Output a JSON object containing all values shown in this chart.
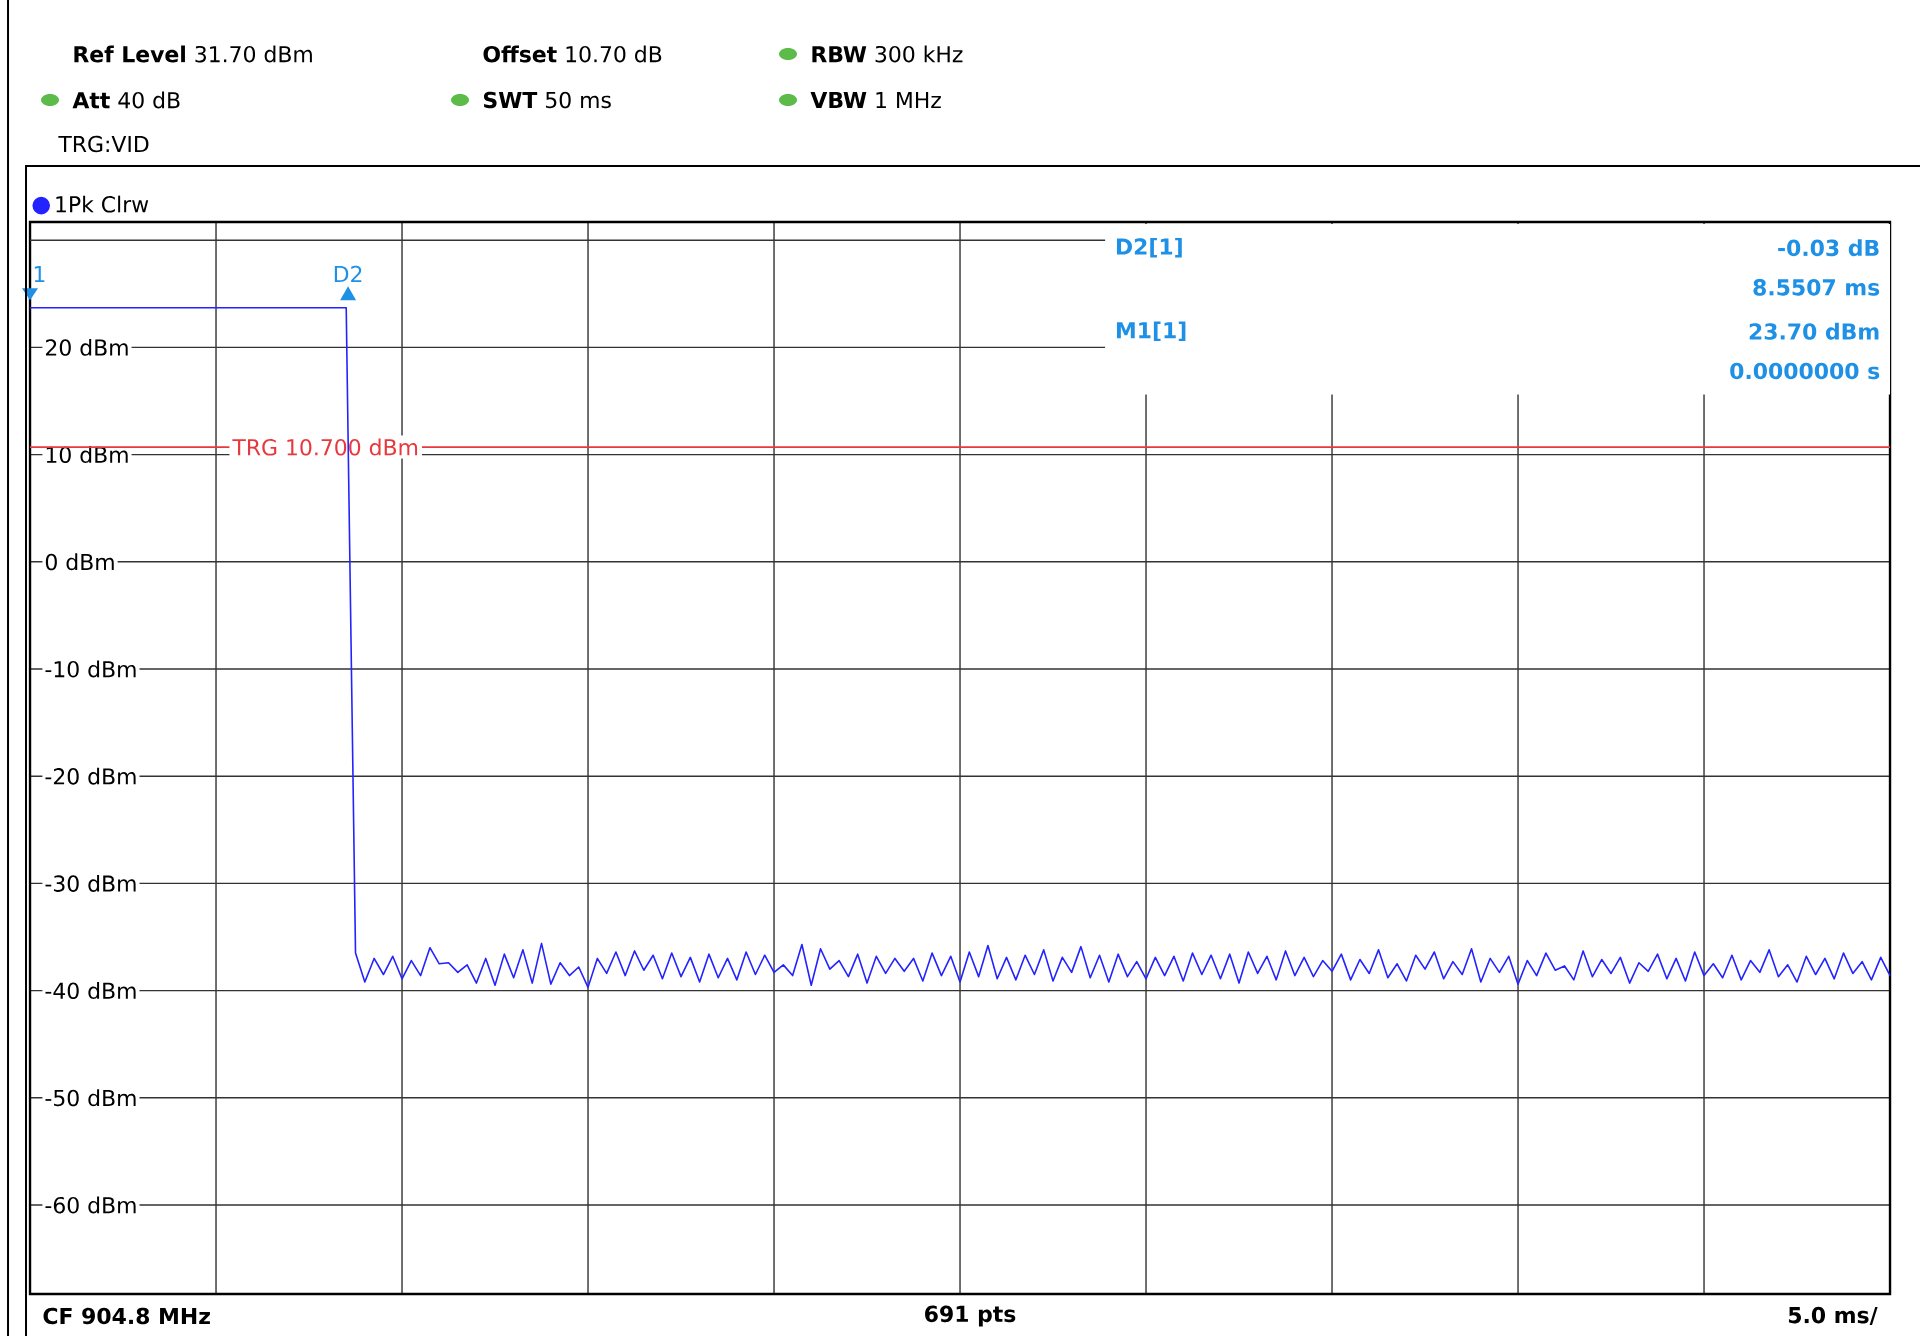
{
  "chart_data": {
    "type": "line",
    "categories": [
      null,
      null,
      null,
      null,
      null,
      null,
      null,
      null,
      null,
      null,
      null,
      null,
      null,
      null,
      null,
      null,
      null,
      null,
      null,
      null,
      null,
      null,
      null,
      null,
      null,
      null,
      null,
      null,
      null,
      null,
      null,
      null,
      null,
      null,
      null,
      null,
      null,
      null,
      null,
      null,
      null,
      null,
      null,
      null,
      null,
      null,
      null,
      null,
      null,
      null,
      null,
      null,
      null,
      null,
      null,
      null,
      null,
      null,
      null,
      null,
      null,
      null,
      null,
      null,
      null,
      null,
      null,
      null,
      null,
      null,
      null,
      null,
      null,
      null,
      null,
      null,
      null,
      null,
      null,
      null,
      null,
      null,
      null,
      null,
      null,
      null,
      null,
      null,
      null,
      null,
      null,
      null,
      null,
      null,
      null,
      null,
      null,
      null,
      null,
      null,
      null,
      null,
      null,
      null,
      null,
      null,
      null,
      null,
      null,
      null,
      null,
      null,
      null,
      null,
      null,
      null,
      null,
      null,
      null,
      null,
      null,
      null,
      null,
      null,
      null,
      null,
      null,
      null,
      null,
      null,
      null,
      null,
      null,
      null,
      null,
      null,
      null,
      null,
      null,
      null,
      null,
      null,
      null,
      null,
      null,
      null,
      null,
      null,
      null,
      null,
      null,
      null,
      null,
      null,
      null,
      null,
      null,
      null,
      null,
      null,
      null,
      null,
      null,
      null,
      null,
      null,
      null,
      null,
      null,
      null,
      null,
      null,
      null,
      null,
      null,
      null,
      null,
      null,
      null,
      null,
      null,
      null,
      null,
      null,
      null,
      null,
      null,
      null,
      null,
      null,
      null,
      null,
      null,
      null,
      null,
      null,
      null,
      null,
      null,
      null,
      null
    ],
    "series": [
      {
        "name": "1Pk Clrw",
        "color": "#2323ff",
        "values": [
          23.7,
          23.7,
          23.7,
          23.7,
          23.7,
          23.7,
          23.7,
          23.7,
          23.7,
          23.7,
          23.7,
          23.7,
          23.7,
          23.7,
          23.7,
          23.7,
          23.7,
          23.7,
          23.7,
          23.7,
          23.7,
          23.7,
          23.7,
          23.7,
          23.7,
          23.7,
          23.7,
          23.7,
          23.7,
          23.7,
          23.7,
          23.7,
          23.7,
          23.7,
          23.7,
          -36.5,
          -39.2,
          -37.0,
          -38.5,
          -36.8,
          -38.9,
          -37.2,
          -38.6,
          -36.0,
          -37.5,
          -37.4,
          -38.3,
          -37.6,
          -39.3,
          -37.0,
          -39.5,
          -36.6,
          -38.8,
          -36.2,
          -39.3,
          -35.6,
          -39.4,
          -37.4,
          -38.6,
          -37.8,
          -39.7,
          -37.0,
          -38.4,
          -36.4,
          -38.6,
          -36.3,
          -38.1,
          -36.7,
          -38.9,
          -36.5,
          -38.7,
          -36.9,
          -39.2,
          -36.6,
          -38.8,
          -37.0,
          -39.0,
          -36.4,
          -38.5,
          -36.7,
          -38.3,
          -37.6,
          -38.6,
          -35.7,
          -39.5,
          -36.1,
          -38.0,
          -37.2,
          -38.7,
          -36.6,
          -39.3,
          -36.8,
          -38.4,
          -37.0,
          -38.2,
          -37.0,
          -39.1,
          -36.5,
          -38.6,
          -36.8,
          -39.2,
          -36.4,
          -38.7,
          -35.8,
          -38.9,
          -36.9,
          -39.0,
          -36.7,
          -38.5,
          -36.2,
          -39.1,
          -36.9,
          -38.3,
          -35.9,
          -38.8,
          -36.7,
          -39.2,
          -36.6,
          -38.7,
          -37.3,
          -38.9,
          -36.9,
          -38.6,
          -36.8,
          -39.1,
          -36.5,
          -38.5,
          -36.7,
          -38.9,
          -36.6,
          -39.3,
          -36.4,
          -38.4,
          -36.8,
          -39.0,
          -36.3,
          -38.6,
          -36.9,
          -38.7,
          -37.2,
          -38.2,
          -36.6,
          -39.0,
          -37.1,
          -38.4,
          -36.2,
          -38.8,
          -37.5,
          -39.1,
          -36.7,
          -38.0,
          -36.4,
          -38.9,
          -37.3,
          -38.5,
          -36.1,
          -39.2,
          -37.0,
          -38.3,
          -36.8,
          -39.4,
          -37.2,
          -38.6,
          -36.5,
          -38.1,
          -37.7,
          -39.0,
          -36.3,
          -38.7,
          -37.1,
          -38.4,
          -36.9,
          -39.3,
          -37.4,
          -38.2,
          -36.6,
          -38.9,
          -37.0,
          -39.1,
          -36.4,
          -38.6,
          -37.5,
          -38.8,
          -36.7,
          -39.0,
          -37.2,
          -38.3,
          -36.2,
          -38.7,
          -37.6,
          -39.2,
          -36.8,
          -38.5,
          -37.0,
          -38.9,
          -36.5,
          -38.4,
          -37.3,
          -39.0,
          -36.9,
          -38.6
        ]
      }
    ],
    "ylim": [
      -68.3,
      31.7
    ],
    "yticks": [
      {
        "value": -60,
        "label": "-60 dBm"
      },
      {
        "value": -50,
        "label": "-50 dBm"
      },
      {
        "value": -40,
        "label": "-40 dBm"
      },
      {
        "value": -30,
        "label": "-30 dBm"
      },
      {
        "value": -20,
        "label": "-20 dBm"
      },
      {
        "value": -10,
        "label": "-10 dBm"
      },
      {
        "value": 0,
        "label": "0 dBm"
      },
      {
        "value": 10,
        "label": "10 dBm"
      },
      {
        "value": 20,
        "label": "20 dBm"
      },
      {
        "value": 30,
        "label": null
      }
    ],
    "tick_labels": "y",
    "grid": true,
    "legend": "top left",
    "ref_lines": [
      {
        "axis": "y",
        "value": 10.7,
        "label": "TRG  10.700 dBm",
        "color": "#e8383d"
      }
    ],
    "annotations": [
      "**Ref Level** 31.70 dBm",
      "**Offset** 10.70 dB",
      "**RBW** 300 kHz",
      "**Att** 40 dB",
      "**SWT** 50 ms",
      "**VBW** 1 MHz",
      "TRG:VID",
      "D2[1]",
      "-0.03 dB",
      "8.5507 ms",
      "M1[1]",
      "23.70 dBm",
      "0.0000000 s",
      "CF 904.8 MHz",
      "691 pts",
      "5.0 ms/",
      "1",
      "D2"
    ]
  }
}
